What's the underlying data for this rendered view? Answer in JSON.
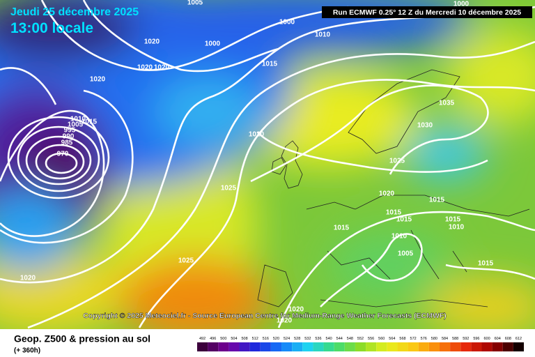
{
  "header": {
    "date": "Jeudi 25 décembre 2025",
    "time": "13:00 locale",
    "run": "Run ECMWF 0.25° 12 Z du Mercredi 10 décembre 2025"
  },
  "copyright": "Copyright © 2025 Meteociel.fr - Source European Centre for Medium-Range Weather Forecasts (ECMWF)",
  "footer": {
    "title": "Geop. Z500 & pression au sol",
    "lead": "(+ 360h)"
  },
  "isobar_labels": [
    1005,
    1000,
    1010,
    1000,
    1020,
    1020,
    1020,
    1015,
    1000,
    1020,
    1035,
    1030,
    1025,
    1020,
    1025,
    1020,
    1015,
    1015,
    1015,
    1015,
    1010,
    1015,
    1010,
    1005,
    1015,
    1025,
    1020,
    1020,
    1020,
    970,
    1015,
    995,
    990,
    985,
    1005,
    1010
  ],
  "scale": [
    492,
    496,
    500,
    504,
    508,
    512,
    516,
    520,
    524,
    528,
    532,
    536,
    540,
    544,
    548,
    552,
    556,
    560,
    564,
    568,
    572,
    576,
    580,
    584,
    588,
    592,
    596,
    600,
    604,
    608,
    612
  ]
}
